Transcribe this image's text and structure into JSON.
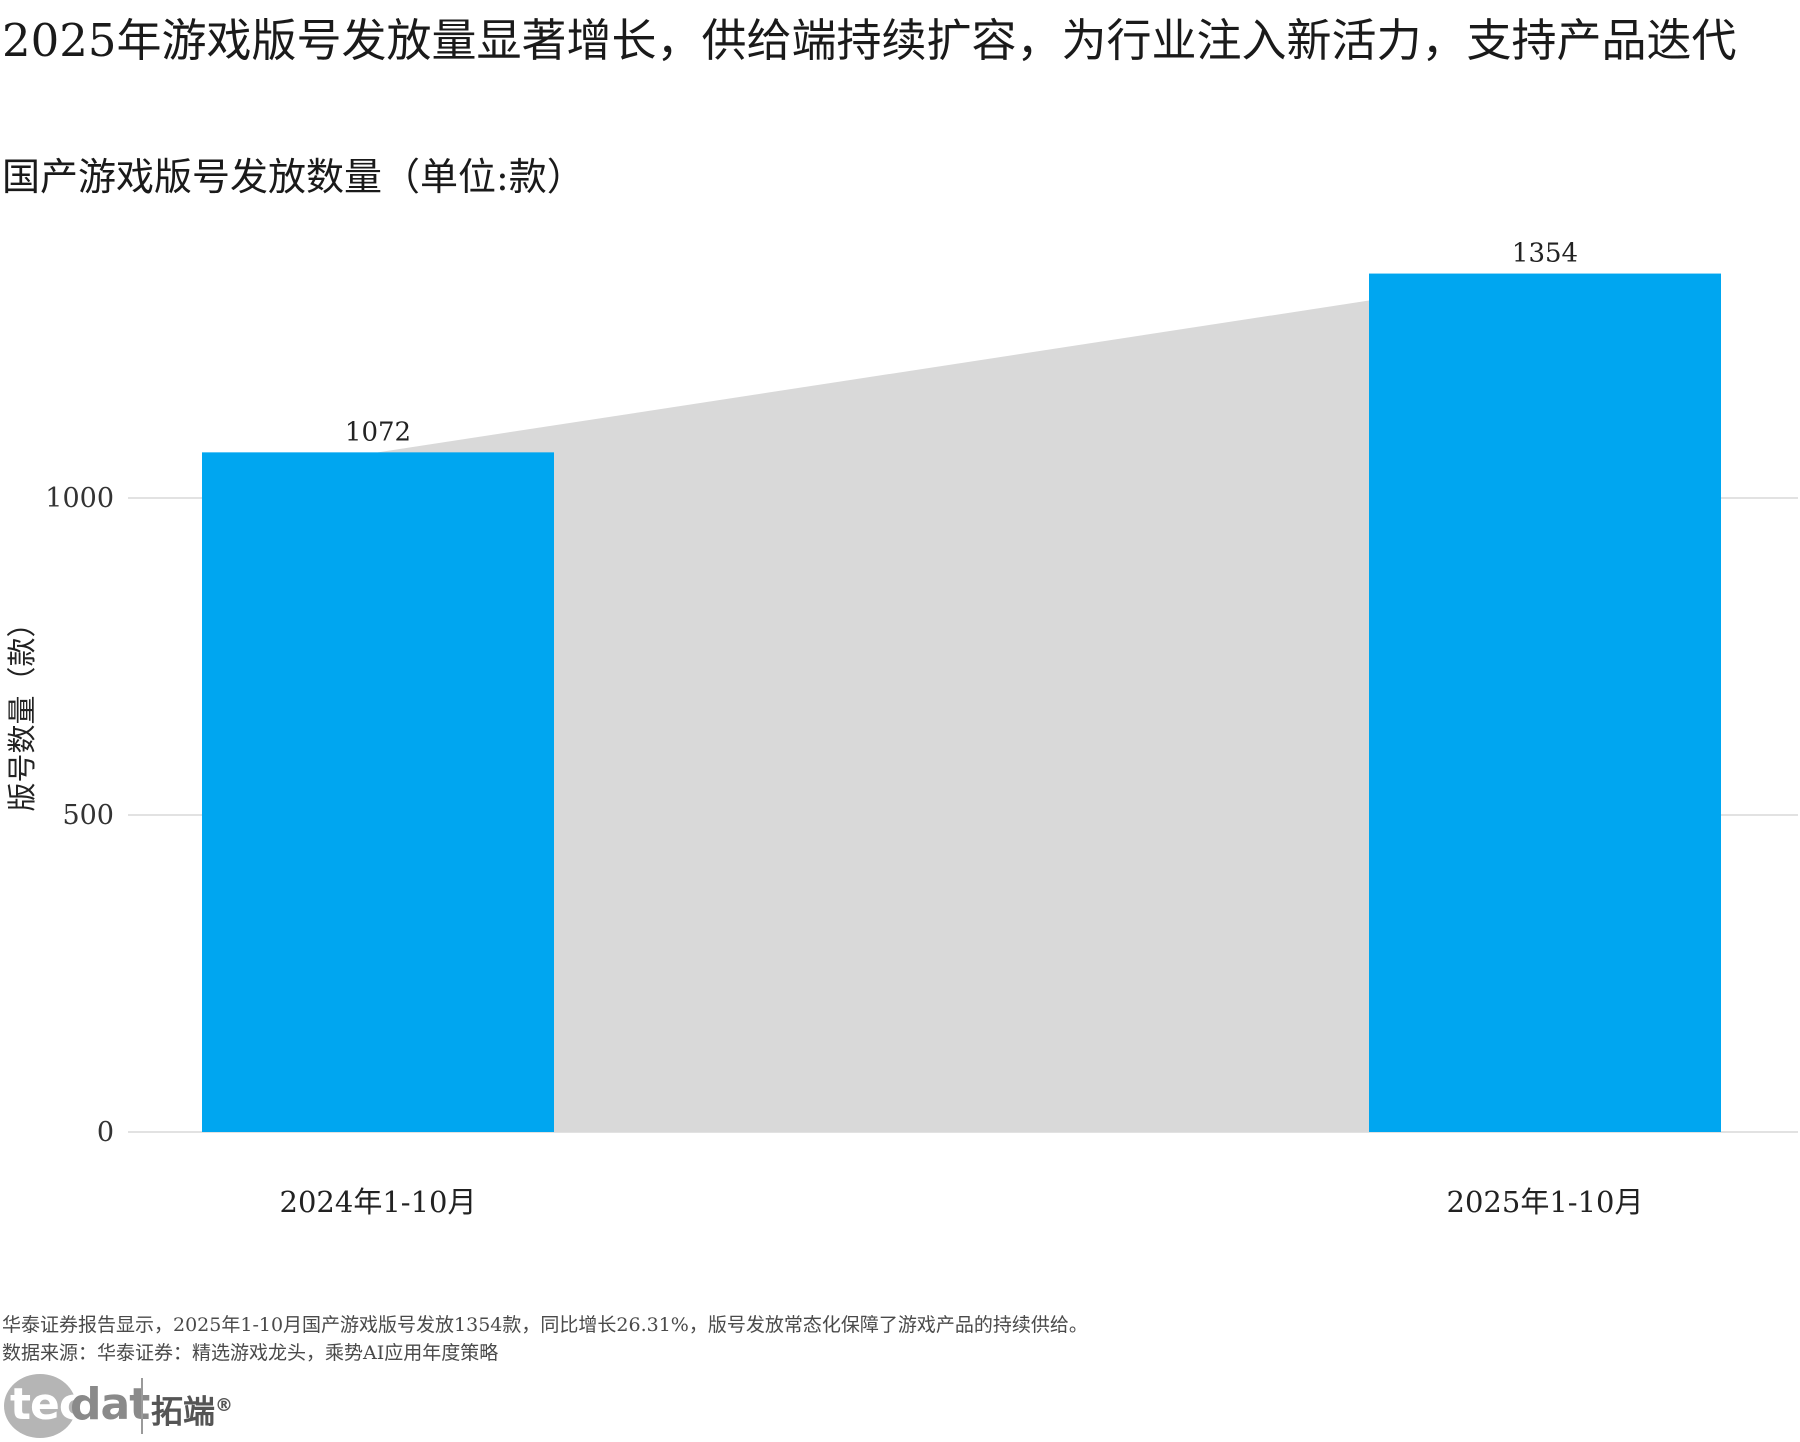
{
  "title": "2025年游戏版号发放量显著增长，供给端持续扩容，为行业注入新活力，支持产品迭代",
  "subtitle": "国产游戏版号发放数量（单位:款）",
  "chart_data": {
    "type": "bar",
    "categories": [
      "2024年1-10月",
      "2025年1-10月"
    ],
    "values": [
      1072,
      1354
    ],
    "data_labels": [
      "1072",
      "1354"
    ],
    "ylabel": "版号数量（款）",
    "ylim": [
      0,
      1380
    ],
    "yticks": [
      0,
      500,
      1000
    ],
    "grid": true,
    "connector_band": true,
    "colors": {
      "bar": "#00a6f0",
      "band": "#d9d9d9",
      "grid": "#e2e2e2"
    }
  },
  "caption": "华泰证券报告显示，2025年1-10月国产游戏版号发放1354款，同比增长26.31%，版号发放常态化保障了游戏产品的持续供给。",
  "source": "数据来源：华泰证券：精选游戏龙头，乘势AI应用年度策略",
  "logo": {
    "tec": "tec",
    "dat": "dat",
    "cn": "拓端",
    "reg": "®"
  }
}
